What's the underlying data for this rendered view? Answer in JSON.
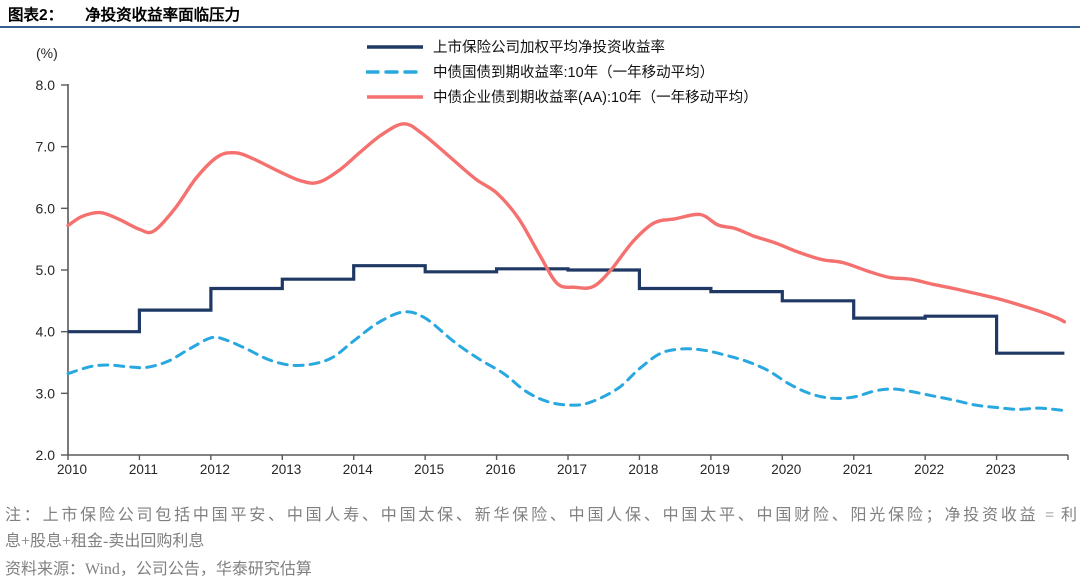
{
  "header": {
    "title_prefix": "图表2：",
    "title": "净投资收益率面临压力"
  },
  "chart_data": {
    "type": "line",
    "unit_label": "(%)",
    "ylim": [
      2.0,
      8.0
    ],
    "yticks": [
      8.0,
      7.0,
      6.0,
      5.0,
      4.0,
      3.0,
      2.0
    ],
    "xticks": [
      2010,
      2011,
      2012,
      2013,
      2014,
      2015,
      2016,
      2017,
      2018,
      2019,
      2020,
      2021,
      2022,
      2023
    ],
    "grid": false,
    "legend_position": "top",
    "series": [
      {
        "name": "上市保险公司加权平均净投资收益率",
        "color": "#1F3864",
        "style": "solid",
        "render": "step",
        "categories": [
          2010,
          2011,
          2012,
          2013,
          2014,
          2015,
          2016,
          2017,
          2018,
          2019,
          2020,
          2021,
          2022,
          2023
        ],
        "values": [
          4.0,
          4.35,
          4.7,
          4.85,
          5.07,
          4.97,
          5.02,
          5.0,
          4.7,
          4.65,
          4.5,
          4.22,
          4.25,
          3.65
        ]
      },
      {
        "name": "中债国债到期收益率:10年（一年移动平均）",
        "color": "#29A8E0",
        "style": "dashed",
        "render": "smooth",
        "points": [
          [
            2010.0,
            3.32
          ],
          [
            2010.3,
            3.43
          ],
          [
            2010.55,
            3.46
          ],
          [
            2010.85,
            3.43
          ],
          [
            2011.1,
            3.42
          ],
          [
            2011.4,
            3.52
          ],
          [
            2011.7,
            3.72
          ],
          [
            2012.0,
            3.9
          ],
          [
            2012.2,
            3.87
          ],
          [
            2012.5,
            3.72
          ],
          [
            2012.8,
            3.55
          ],
          [
            2013.1,
            3.46
          ],
          [
            2013.4,
            3.47
          ],
          [
            2013.7,
            3.58
          ],
          [
            2014.0,
            3.85
          ],
          [
            2014.35,
            4.15
          ],
          [
            2014.7,
            4.32
          ],
          [
            2015.0,
            4.22
          ],
          [
            2015.4,
            3.84
          ],
          [
            2015.75,
            3.56
          ],
          [
            2016.1,
            3.32
          ],
          [
            2016.4,
            3.04
          ],
          [
            2016.7,
            2.87
          ],
          [
            2017.0,
            2.81
          ],
          [
            2017.3,
            2.85
          ],
          [
            2017.7,
            3.08
          ],
          [
            2018.0,
            3.4
          ],
          [
            2018.3,
            3.65
          ],
          [
            2018.6,
            3.72
          ],
          [
            2018.9,
            3.7
          ],
          [
            2019.2,
            3.62
          ],
          [
            2019.5,
            3.52
          ],
          [
            2019.8,
            3.37
          ],
          [
            2020.1,
            3.15
          ],
          [
            2020.4,
            2.99
          ],
          [
            2020.7,
            2.92
          ],
          [
            2021.0,
            2.94
          ],
          [
            2021.3,
            3.04
          ],
          [
            2021.55,
            3.07
          ],
          [
            2021.8,
            3.03
          ],
          [
            2022.1,
            2.96
          ],
          [
            2022.4,
            2.89
          ],
          [
            2022.7,
            2.81
          ],
          [
            2023.0,
            2.77
          ],
          [
            2023.3,
            2.74
          ],
          [
            2023.6,
            2.76
          ],
          [
            2023.95,
            2.72
          ]
        ]
      },
      {
        "name": "中债企业债到期收益率(AA):10年（一年移动平均）",
        "color": "#F4716F",
        "style": "solid",
        "render": "smooth",
        "points": [
          [
            2010.0,
            5.72
          ],
          [
            2010.2,
            5.87
          ],
          [
            2010.45,
            5.93
          ],
          [
            2010.7,
            5.83
          ],
          [
            2011.0,
            5.66
          ],
          [
            2011.2,
            5.63
          ],
          [
            2011.5,
            6.0
          ],
          [
            2011.8,
            6.5
          ],
          [
            2012.1,
            6.84
          ],
          [
            2012.35,
            6.9
          ],
          [
            2012.6,
            6.8
          ],
          [
            2012.95,
            6.6
          ],
          [
            2013.25,
            6.45
          ],
          [
            2013.5,
            6.42
          ],
          [
            2013.8,
            6.62
          ],
          [
            2014.1,
            6.92
          ],
          [
            2014.4,
            7.2
          ],
          [
            2014.7,
            7.37
          ],
          [
            2014.95,
            7.22
          ],
          [
            2015.3,
            6.88
          ],
          [
            2015.7,
            6.48
          ],
          [
            2016.0,
            6.25
          ],
          [
            2016.3,
            5.85
          ],
          [
            2016.6,
            5.25
          ],
          [
            2016.85,
            4.78
          ],
          [
            2017.1,
            4.72
          ],
          [
            2017.35,
            4.73
          ],
          [
            2017.6,
            5.0
          ],
          [
            2017.9,
            5.45
          ],
          [
            2018.2,
            5.76
          ],
          [
            2018.5,
            5.83
          ],
          [
            2018.85,
            5.9
          ],
          [
            2019.1,
            5.73
          ],
          [
            2019.35,
            5.67
          ],
          [
            2019.6,
            5.55
          ],
          [
            2019.9,
            5.44
          ],
          [
            2020.2,
            5.3
          ],
          [
            2020.55,
            5.17
          ],
          [
            2020.85,
            5.12
          ],
          [
            2021.2,
            4.98
          ],
          [
            2021.5,
            4.88
          ],
          [
            2021.8,
            4.85
          ],
          [
            2022.1,
            4.77
          ],
          [
            2022.4,
            4.7
          ],
          [
            2022.7,
            4.62
          ],
          [
            2023.0,
            4.54
          ],
          [
            2023.3,
            4.44
          ],
          [
            2023.6,
            4.33
          ],
          [
            2023.85,
            4.22
          ],
          [
            2023.95,
            4.16
          ]
        ]
      }
    ]
  },
  "notes": {
    "line1": "注：上市保险公司包括中国平安、中国人寿、中国太保、新华保险、中国人保、中国太平、中国财险、阳光保险；净投资收益 = 利",
    "line2": "息+股息+租金-卖出回购利息",
    "source": "资料来源：Wind，公司公告，华泰研究估算"
  },
  "colors": {
    "title_rule": "#355E91",
    "axis": "#595959",
    "tick_label": "#262626",
    "note_text": "#808080",
    "insurer_line": "#1F3864",
    "govt_bond_line": "#29A8E0",
    "corp_bond_line": "#F4716F"
  }
}
